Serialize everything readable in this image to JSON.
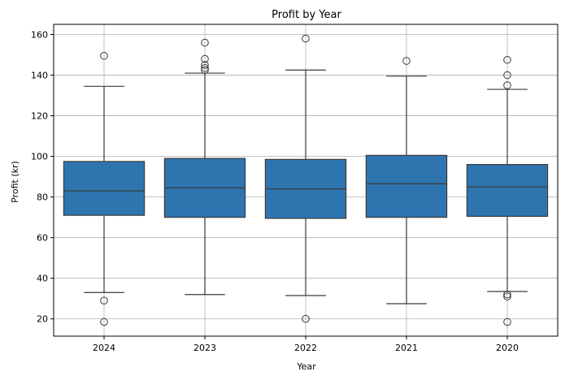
{
  "chart_data": {
    "type": "box",
    "title": "Profit by Year",
    "xlabel": "Year",
    "ylabel": "Profit (kr)",
    "ylim": [
      11.5,
      165
    ],
    "yticks": [
      20,
      40,
      60,
      80,
      100,
      120,
      140,
      160
    ],
    "grid": true,
    "box_color": "#2e75b0",
    "categories": [
      "2024",
      "2023",
      "2022",
      "2021",
      "2020"
    ],
    "boxes": [
      {
        "category": "2024",
        "whisker_low": 33,
        "q1": 71,
        "median": 83,
        "q3": 97.5,
        "whisker_high": 134.5,
        "outliers": [
          149.5,
          29,
          18.5
        ]
      },
      {
        "category": "2023",
        "whisker_low": 32,
        "q1": 70,
        "median": 84.5,
        "q3": 99,
        "whisker_high": 141,
        "outliers": [
          156,
          148,
          145,
          143.5,
          142.5
        ]
      },
      {
        "category": "2022",
        "whisker_low": 31.5,
        "q1": 69.5,
        "median": 84,
        "q3": 98.5,
        "whisker_high": 142.5,
        "outliers": [
          158,
          20
        ]
      },
      {
        "category": "2021",
        "whisker_low": 27.5,
        "q1": 70,
        "median": 86.5,
        "q3": 100.5,
        "whisker_high": 139.5,
        "outliers": [
          147
        ]
      },
      {
        "category": "2020",
        "whisker_low": 33.5,
        "q1": 70.5,
        "median": 85,
        "q3": 96,
        "whisker_high": 133,
        "outliers": [
          147.5,
          140,
          135,
          32,
          31,
          18.5
        ]
      }
    ]
  }
}
